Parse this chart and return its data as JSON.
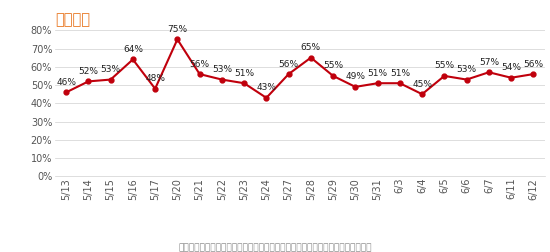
{
  "title": "看多指数",
  "title_color": "#E87722",
  "x_labels": [
    "5/13",
    "5/14",
    "5/15",
    "5/16",
    "5/17",
    "5/20",
    "5/21",
    "5/22",
    "5/23",
    "5/24",
    "5/27",
    "5/28",
    "5/29",
    "5/30",
    "5/31",
    "6/3",
    "6/4",
    "6/5",
    "6/6",
    "6/7",
    "6/11",
    "6/12"
  ],
  "y_values": [
    0.46,
    0.52,
    0.53,
    0.64,
    0.48,
    0.75,
    0.56,
    0.53,
    0.51,
    0.43,
    0.56,
    0.65,
    0.55,
    0.49,
    0.51,
    0.51,
    0.45,
    0.55,
    0.53,
    0.57,
    0.54,
    0.56
  ],
  "line_color": "#C0000C",
  "marker_color": "#C0000C",
  "ylim": [
    0.0,
    0.8
  ],
  "yticks": [
    0.0,
    0.1,
    0.2,
    0.3,
    0.4,
    0.5,
    0.6,
    0.7,
    0.8
  ],
  "grid_color": "#D0D0D0",
  "background_color": "#FFFFFF",
  "footnote": "数据来源：金融界股灵通每日调查的看多占比，数值越大表示用户越看好当天走势",
  "footnote_color": "#888888",
  "line_width": 1.5,
  "marker_size": 3.5,
  "label_fontsize": 6.5,
  "tick_fontsize": 7.0,
  "title_fontsize": 10.5,
  "footnote_fontsize": 6.5
}
